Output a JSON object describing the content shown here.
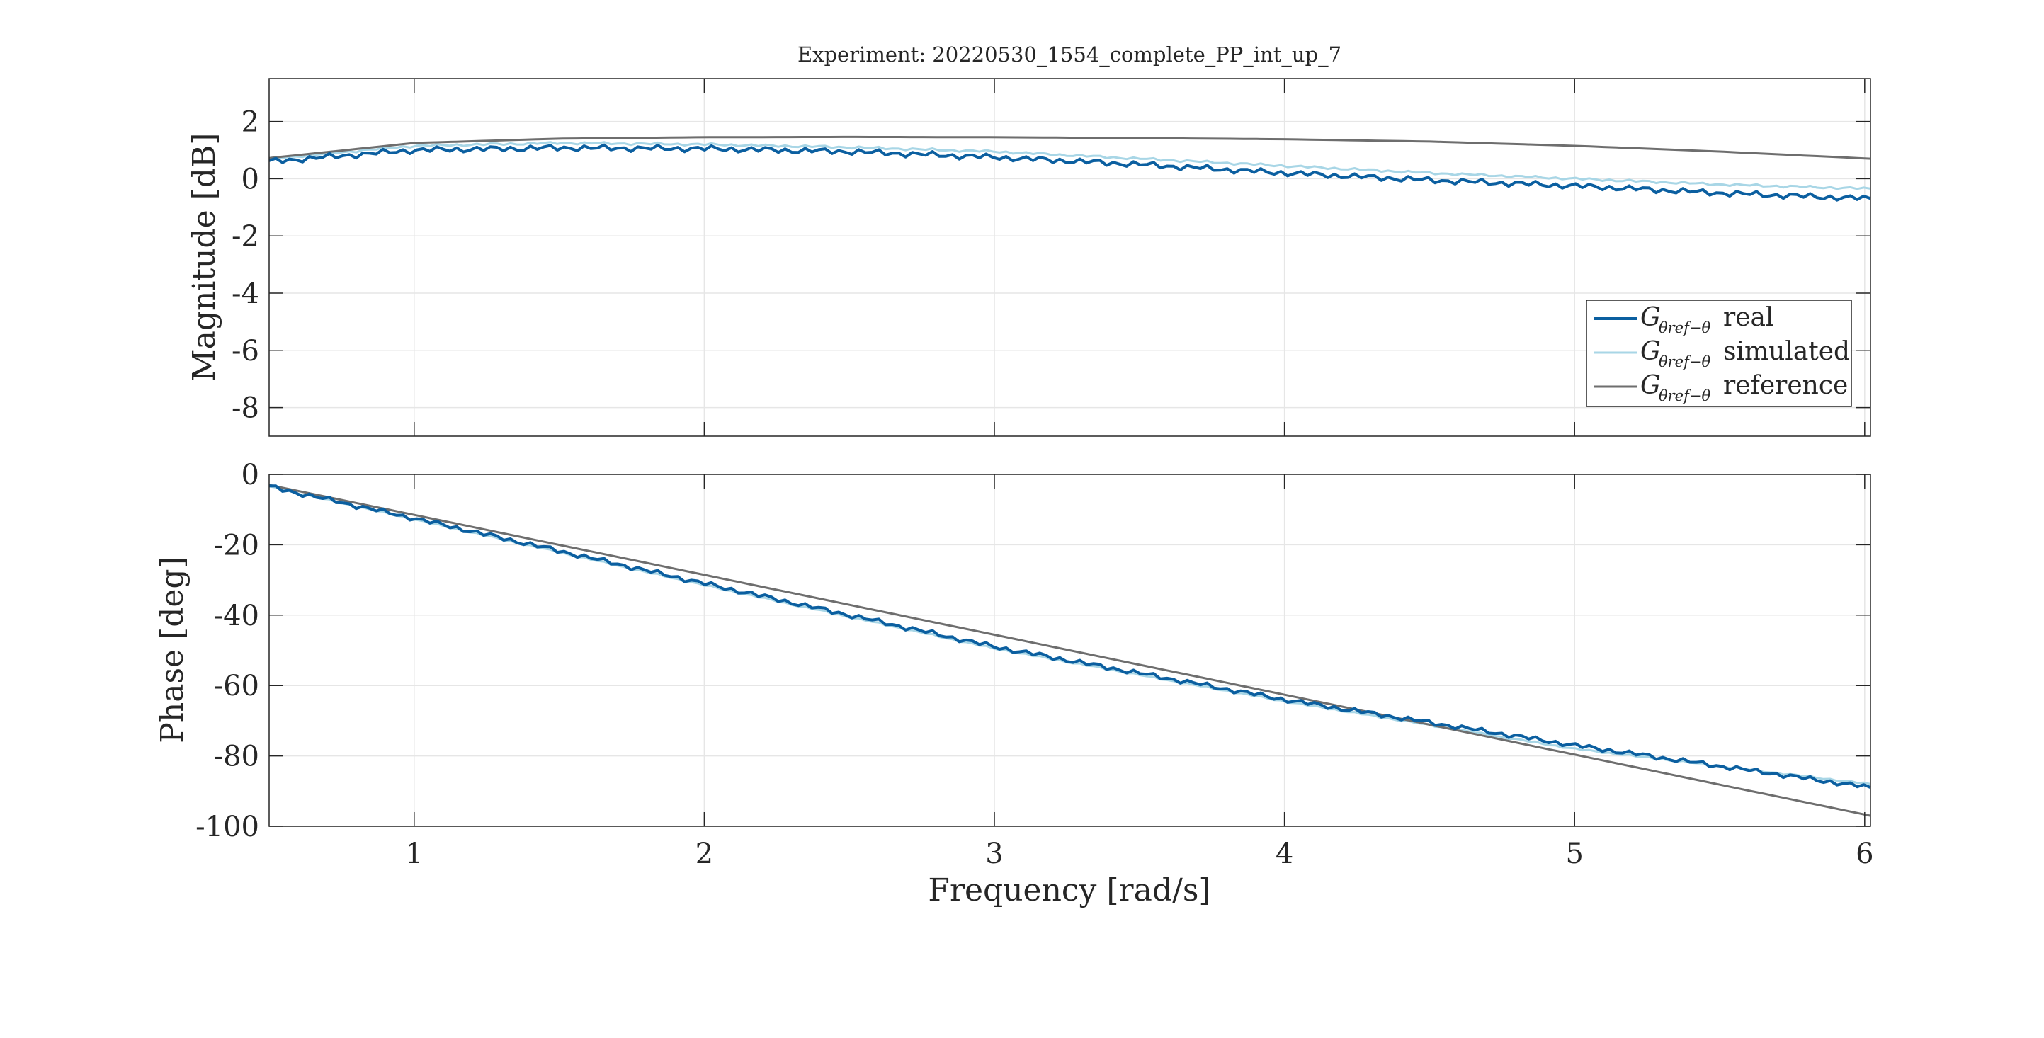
{
  "title": "Experiment: 20220530_1554_complete_PP_int_up_7",
  "colors": {
    "real": "#0b5fa0",
    "simulated": "#a8d6e6",
    "reference": "#6e6e6e",
    "grid": "#e6e6e6",
    "axis": "#262626"
  },
  "chart_data": [
    {
      "type": "line",
      "panel": "magnitude",
      "title": "Experiment: 20220530_1554_complete_PP_int_up_7",
      "xlabel": "",
      "ylabel": "Magnitude [dB]",
      "xlim": [
        0.5,
        6.02
      ],
      "ylim": [
        -9,
        3.5
      ],
      "yticks": [
        "-8",
        "-6",
        "-4",
        "-2",
        "0",
        "2"
      ],
      "yticks_values": [
        -8,
        -6,
        -4,
        -2,
        0,
        2
      ],
      "xticks_values": [
        1,
        2,
        3,
        4,
        5,
        6
      ],
      "grid": true,
      "legend": {
        "position": "bottom-right",
        "entries": [
          {
            "prefix": "G",
            "subscript": "θref−θ",
            "label": "real"
          },
          {
            "prefix": "G",
            "subscript": "θref−θ",
            "label": "simulated"
          },
          {
            "prefix": "G",
            "subscript": "θref−θ",
            "label": "reference"
          }
        ]
      },
      "series": [
        {
          "name": "real",
          "x_start": 0.5,
          "x_end": 6.02,
          "points": 240,
          "mean": {
            "x": [
              0.5,
              1.0,
              1.5,
              2.0,
              2.5,
              3.0,
              3.5,
              4.0,
              4.5,
              5.0,
              5.5,
              6.02
            ],
            "y": [
              0.6,
              1.0,
              1.08,
              1.05,
              0.95,
              0.75,
              0.5,
              0.2,
              -0.05,
              -0.25,
              -0.5,
              -0.7
            ]
          },
          "ripple": 0.12
        },
        {
          "name": "simulated",
          "x_start": 0.5,
          "x_end": 6.02,
          "points": 240,
          "mean": {
            "x": [
              0.5,
              1.0,
              1.5,
              2.0,
              2.5,
              3.0,
              3.5,
              4.0,
              4.5,
              5.0,
              5.5,
              6.02
            ],
            "y": [
              0.7,
              1.15,
              1.25,
              1.2,
              1.1,
              0.95,
              0.7,
              0.45,
              0.2,
              0.0,
              -0.2,
              -0.35
            ]
          },
          "ripple": 0.05
        },
        {
          "name": "reference",
          "x": [
            0.5,
            1.0,
            1.5,
            2.0,
            2.5,
            3.0,
            3.5,
            4.0,
            4.5,
            5.0,
            5.5,
            6.02
          ],
          "y": [
            0.72,
            1.25,
            1.4,
            1.45,
            1.46,
            1.45,
            1.42,
            1.38,
            1.3,
            1.15,
            0.95,
            0.7
          ]
        }
      ]
    },
    {
      "type": "line",
      "panel": "phase",
      "xlabel": "Frequency [rad/s]",
      "ylabel": "Phase [deg]",
      "xlim": [
        0.5,
        6.02
      ],
      "ylim": [
        -100,
        0
      ],
      "yticks": [
        "-100",
        "-80",
        "-60",
        "-40",
        "-20",
        "0"
      ],
      "yticks_values": [
        -100,
        -80,
        -60,
        -40,
        -20,
        0
      ],
      "xticks": [
        "1",
        "2",
        "3",
        "4",
        "5",
        "6"
      ],
      "xticks_values": [
        1,
        2,
        3,
        4,
        5,
        6
      ],
      "grid": true,
      "series": [
        {
          "name": "real",
          "x_start": 0.5,
          "x_end": 6.02,
          "points": 240,
          "mean": {
            "x": [
              0.5,
              1.0,
              2.0,
              3.0,
              3.5,
              4.0,
              5.0,
              6.02
            ],
            "y": [
              -3.5,
              -12.5,
              -31,
              -49,
              -56.5,
              -64,
              -77,
              -89
            ]
          },
          "ripple": 0.8
        },
        {
          "name": "simulated",
          "x_start": 0.5,
          "x_end": 6.02,
          "points": 240,
          "mean": {
            "x": [
              0.5,
              1.0,
              2.0,
              3.0,
              3.5,
              4.0,
              5.0,
              6.02
            ],
            "y": [
              -3.5,
              -12.8,
              -31.5,
              -49.5,
              -57,
              -64.5,
              -78,
              -88
            ]
          },
          "ripple": 0.3
        },
        {
          "name": "reference",
          "x": [
            0.5,
            6.02
          ],
          "y": [
            -3,
            -97
          ]
        }
      ]
    }
  ]
}
